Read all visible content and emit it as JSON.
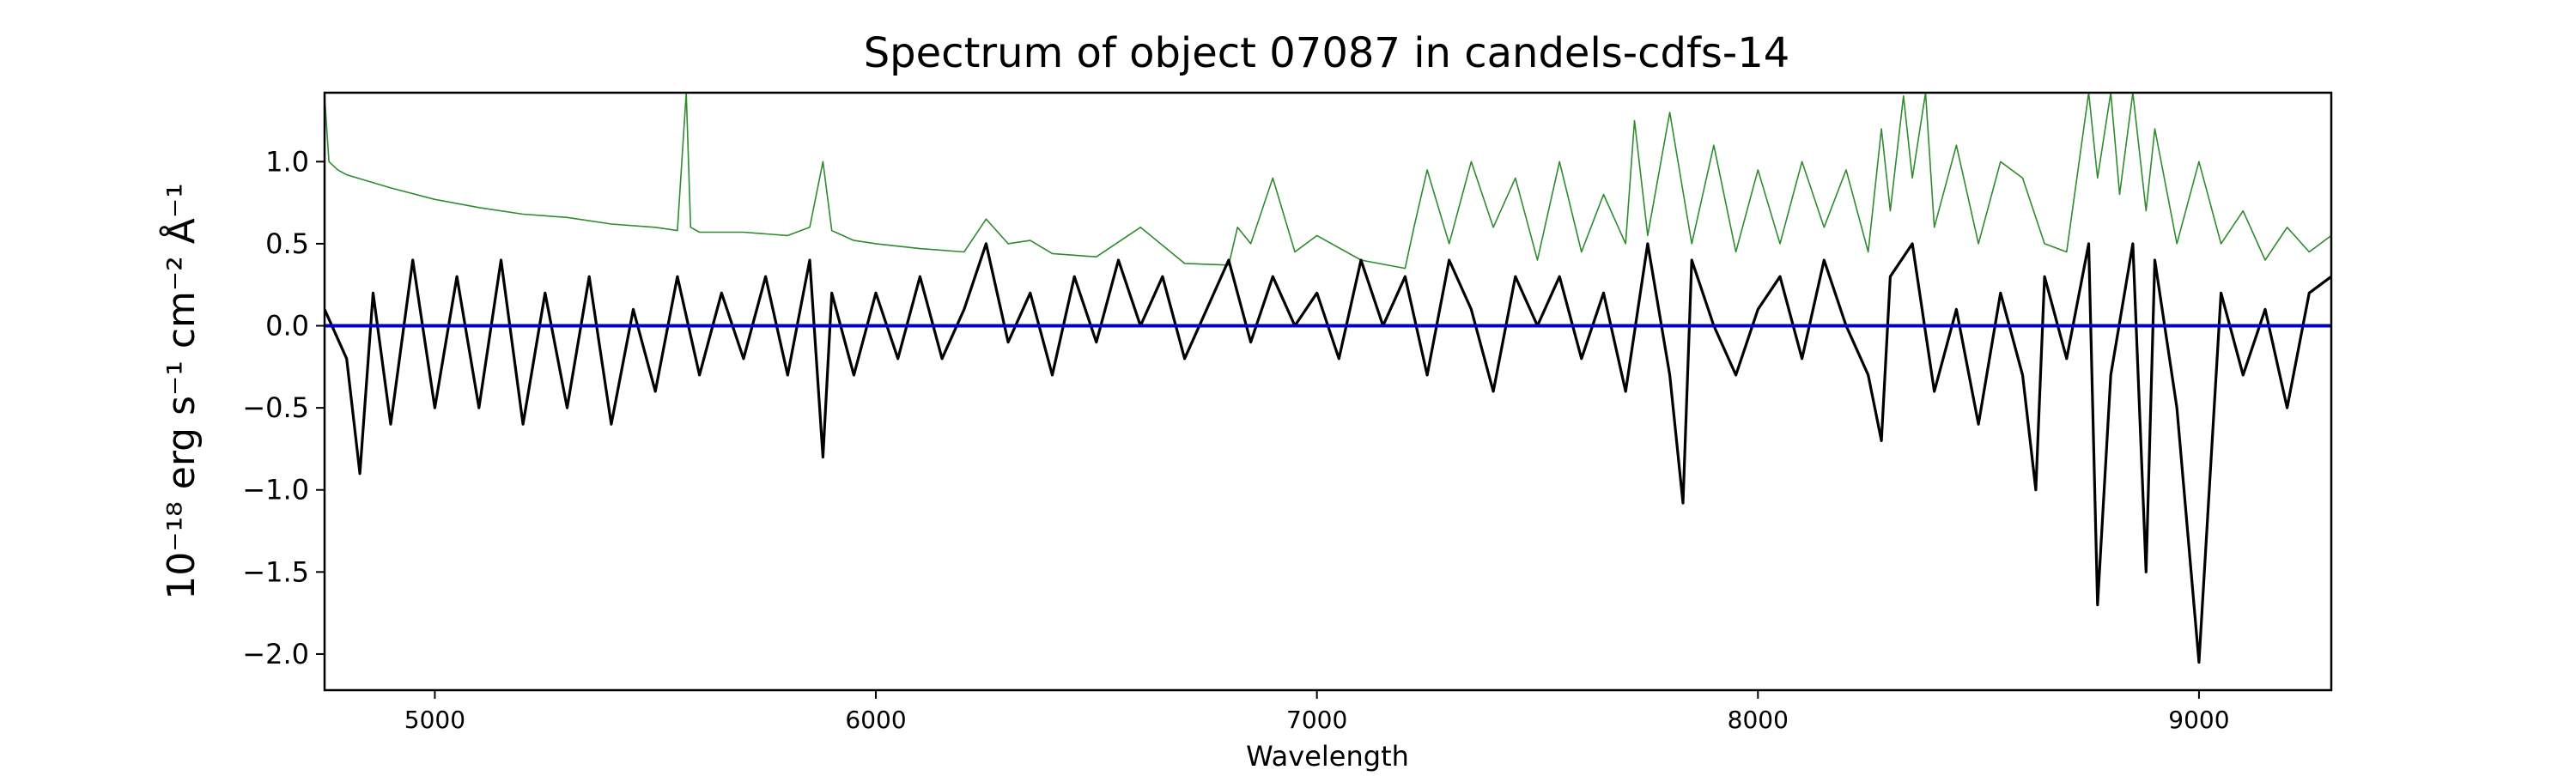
{
  "chart_data": {
    "type": "line",
    "title": "Spectrum of object 07087 in candels-cdfs-14",
    "xlabel": "Wavelength",
    "ylabel": "10⁻¹⁸ erg s⁻¹ cm⁻² Å⁻¹",
    "xlim": [
      4750,
      9300
    ],
    "ylim": [
      -2.22,
      1.42
    ],
    "x_ticks": [
      5000,
      6000,
      7000,
      8000,
      9000
    ],
    "x_tick_labels": [
      "5000",
      "6000",
      "7000",
      "8000",
      "9000"
    ],
    "y_ticks": [
      1.0,
      0.5,
      0.0,
      -0.5,
      -1.0,
      -1.5,
      -2.0
    ],
    "y_tick_labels": [
      "1.0",
      "0.5",
      "0.0",
      "−0.5",
      "−1.0",
      "−1.5",
      "−2.0"
    ],
    "grid": false,
    "legend": "none",
    "series": [
      {
        "role": "flux",
        "color": "#000000",
        "x": [
          4750,
          4800,
          4830,
          4860,
          4900,
          4950,
          5000,
          5050,
          5100,
          5150,
          5200,
          5250,
          5300,
          5350,
          5400,
          5450,
          5500,
          5550,
          5600,
          5650,
          5700,
          5750,
          5800,
          5850,
          5880,
          5900,
          5950,
          6000,
          6050,
          6100,
          6150,
          6200,
          6250,
          6300,
          6350,
          6400,
          6450,
          6500,
          6550,
          6600,
          6650,
          6700,
          6750,
          6800,
          6850,
          6900,
          6950,
          7000,
          7050,
          7100,
          7150,
          7200,
          7250,
          7300,
          7350,
          7400,
          7450,
          7500,
          7550,
          7600,
          7650,
          7700,
          7750,
          7800,
          7830,
          7850,
          7900,
          7950,
          8000,
          8050,
          8100,
          8150,
          8200,
          8250,
          8280,
          8300,
          8350,
          8400,
          8450,
          8500,
          8550,
          8600,
          8630,
          8650,
          8700,
          8750,
          8770,
          8800,
          8850,
          8880,
          8900,
          8950,
          9000,
          9050,
          9100,
          9150,
          9200,
          9250,
          9300
        ],
        "y": [
          0.1,
          -0.2,
          -0.9,
          0.2,
          -0.6,
          0.4,
          -0.5,
          0.3,
          -0.5,
          0.4,
          -0.6,
          0.2,
          -0.5,
          0.3,
          -0.6,
          0.1,
          -0.4,
          0.3,
          -0.3,
          0.2,
          -0.2,
          0.3,
          -0.3,
          0.4,
          -0.8,
          0.2,
          -0.3,
          0.2,
          -0.2,
          0.3,
          -0.2,
          0.1,
          0.5,
          -0.1,
          0.2,
          -0.3,
          0.3,
          -0.1,
          0.4,
          0.0,
          0.3,
          -0.2,
          0.1,
          0.4,
          -0.1,
          0.3,
          0.0,
          0.2,
          -0.2,
          0.4,
          0.0,
          0.3,
          -0.3,
          0.4,
          0.1,
          -0.4,
          0.3,
          0.0,
          0.3,
          -0.2,
          0.2,
          -0.4,
          0.5,
          -0.3,
          -1.08,
          0.4,
          0.0,
          -0.3,
          0.1,
          0.3,
          -0.2,
          0.4,
          0.0,
          -0.3,
          -0.7,
          0.3,
          0.5,
          -0.4,
          0.1,
          -0.6,
          0.2,
          -0.3,
          -1.0,
          0.3,
          -0.2,
          0.5,
          -1.7,
          -0.3,
          0.5,
          -1.5,
          0.4,
          -0.5,
          -2.05,
          0.2,
          -0.3,
          0.1,
          -0.5,
          0.2,
          0.3
        ]
      },
      {
        "role": "model",
        "color": "#0000cc",
        "x": [
          4750,
          9300
        ],
        "y": [
          0.0,
          0.0
        ]
      },
      {
        "role": "error",
        "color": "#2e8b2e",
        "x": [
          4750,
          4760,
          4780,
          4800,
          4900,
          5000,
          5100,
          5200,
          5300,
          5400,
          5500,
          5550,
          5570,
          5580,
          5600,
          5700,
          5800,
          5850,
          5880,
          5900,
          5950,
          6000,
          6100,
          6200,
          6250,
          6300,
          6350,
          6400,
          6500,
          6600,
          6700,
          6800,
          6820,
          6850,
          6900,
          6950,
          7000,
          7100,
          7200,
          7220,
          7250,
          7300,
          7350,
          7400,
          7450,
          7500,
          7550,
          7600,
          7650,
          7700,
          7720,
          7750,
          7800,
          7850,
          7900,
          7950,
          8000,
          8050,
          8100,
          8150,
          8200,
          8250,
          8280,
          8300,
          8330,
          8350,
          8380,
          8400,
          8450,
          8500,
          8550,
          8600,
          8650,
          8700,
          8750,
          8770,
          8800,
          8820,
          8850,
          8880,
          8900,
          8950,
          9000,
          9050,
          9100,
          9150,
          9200,
          9250,
          9300
        ],
        "y": [
          1.4,
          1.0,
          0.95,
          0.92,
          0.84,
          0.77,
          0.72,
          0.68,
          0.66,
          0.62,
          0.6,
          0.58,
          1.42,
          0.6,
          0.57,
          0.57,
          0.55,
          0.6,
          1.0,
          0.58,
          0.52,
          0.5,
          0.47,
          0.45,
          0.65,
          0.5,
          0.52,
          0.44,
          0.42,
          0.6,
          0.38,
          0.37,
          0.6,
          0.5,
          0.9,
          0.45,
          0.55,
          0.4,
          0.35,
          0.6,
          0.95,
          0.5,
          1.0,
          0.6,
          0.9,
          0.4,
          1.0,
          0.45,
          0.8,
          0.5,
          1.25,
          0.55,
          1.3,
          0.5,
          1.1,
          0.45,
          0.95,
          0.5,
          1.0,
          0.6,
          0.95,
          0.45,
          1.2,
          0.7,
          1.4,
          0.9,
          1.42,
          0.6,
          1.1,
          0.5,
          1.0,
          0.9,
          0.5,
          0.45,
          1.42,
          0.9,
          1.42,
          0.8,
          1.42,
          0.7,
          1.2,
          0.5,
          1.0,
          0.5,
          0.7,
          0.4,
          0.6,
          0.45,
          0.55
        ]
      }
    ]
  }
}
